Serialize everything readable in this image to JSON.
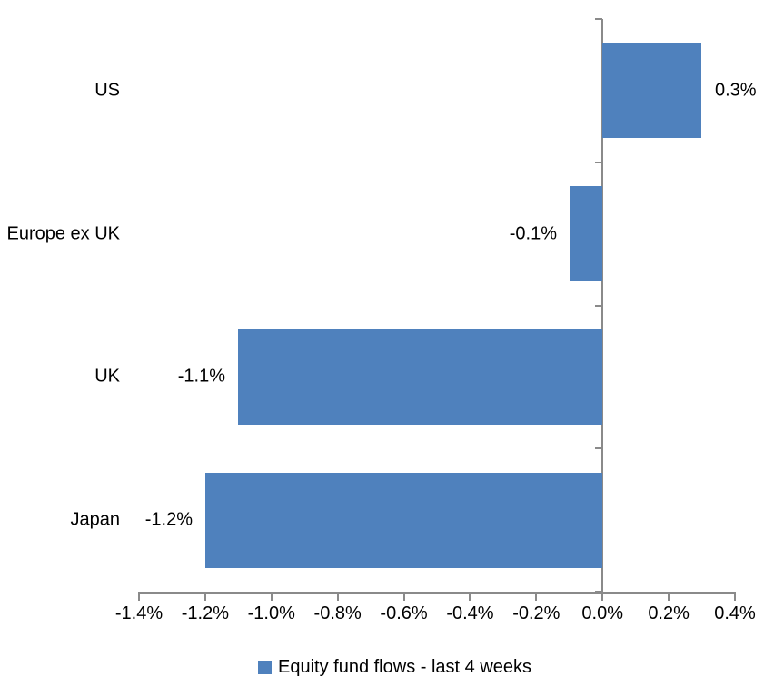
{
  "chart_data": {
    "type": "bar",
    "orientation": "horizontal",
    "title": "",
    "xlabel": "",
    "ylabel": "",
    "grid": false,
    "categories": [
      "US",
      "Europe ex UK",
      "UK",
      "Japan"
    ],
    "series": [
      {
        "name": "Equity fund flows - last 4 weeks",
        "values": [
          0.3,
          -0.1,
          -1.1,
          -1.2
        ],
        "data_labels": [
          "0.3%",
          "-0.1%",
          "-1.1%",
          "-1.2%"
        ]
      }
    ],
    "x_tick_labels": [
      "-1.4%",
      "-1.2%",
      "-1.0%",
      "-0.8%",
      "-0.6%",
      "-0.4%",
      "-0.2%",
      "0.0%",
      "0.2%",
      "0.4%"
    ],
    "xlim": [
      -1.4,
      0.4
    ],
    "legend": {
      "position": "bottom",
      "entries": [
        "Equity fund flows - last 4 weeks"
      ]
    },
    "colors": {
      "bar": "#4F81BD",
      "axis": "#8A8A8A",
      "text": "#000000"
    }
  }
}
